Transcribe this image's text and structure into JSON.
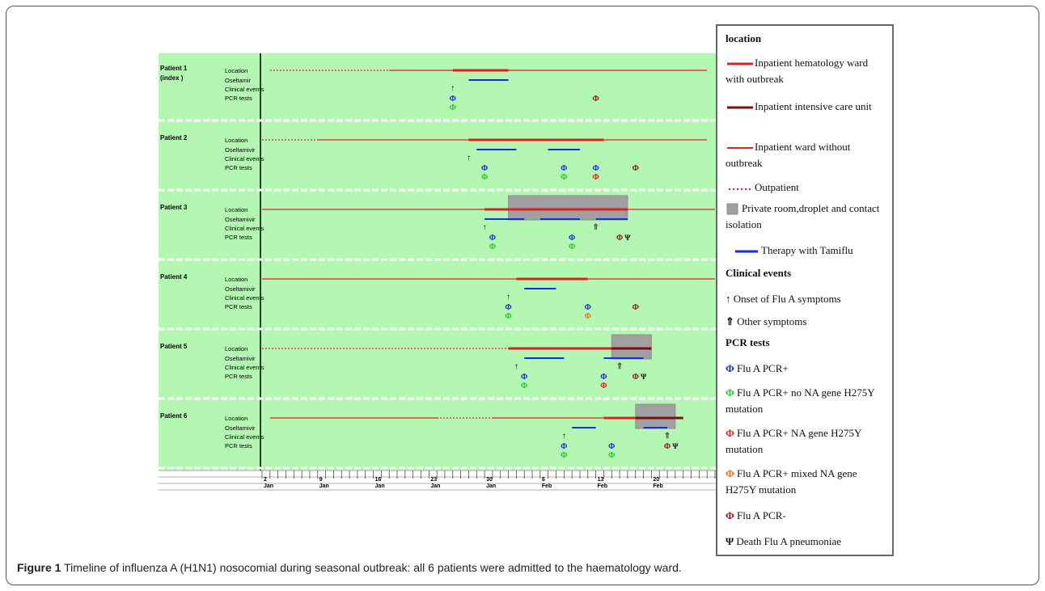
{
  "caption": {
    "label": "Figure 1",
    "text": "Timeline of influenza A (H1N1) nosocomial during seasonal outbreak: all 6 patients were admitted to the haematology ward."
  },
  "legend": {
    "title": "location",
    "items": {
      "hem_ward": "Inpatient hematology ward with outbreak",
      "icu": "Inpatient intensive care unit",
      "ward_no_outbreak": "Inpatient ward without outbreak",
      "outpatient": "Outpatient",
      "isolation": "Private room,droplet and contact  isolation",
      "tamiflu": "Therapy with Tamiflu"
    },
    "clinical_title": "Clinical events",
    "clinical": {
      "onset": "Onset of Flu A symptoms",
      "other": "Other symptoms"
    },
    "pcr_title": "PCR tests",
    "pcr": {
      "pos": "Flu A PCR+",
      "pos_no_mut": "Flu A PCR+ no NA gene H275Y mutation",
      "pos_mut": "Flu A PCR+ NA gene H275Y mutation",
      "pos_mixed": "Flu A PCR+ mixed NA gene H275Y mutation",
      "neg": "Flu A PCR-",
      "death": "Death Flu A pneumoniae"
    }
  },
  "colors": {
    "background": "#b3f7b3",
    "hem_ward": "#e02020",
    "icu": "#7a1010",
    "ward": "#e02020",
    "tamiflu": "#1030e0",
    "isolation": "#a0a0a0",
    "pcr_pos": "#1030e0",
    "pcr_no_mut": "#28c828",
    "pcr_mut": "#e82020",
    "pcr_mixed": "#ff6a10",
    "pcr_neg": "#8a1a1a"
  },
  "chart_data": {
    "type": "timeline",
    "row_labels": [
      "Location",
      "Oseltamivir",
      "Clinical events",
      "PCR tests"
    ],
    "row_labels_p1": [
      "Location",
      "Oseltamir",
      "Clinical events",
      "PCR tests"
    ],
    "x_axis": {
      "days_start": 1,
      "days_end": 58,
      "ticks": [
        {
          "day": 1,
          "label": [
            "2",
            "Jan"
          ]
        },
        {
          "day": 8,
          "label": [
            "9",
            "Jan"
          ]
        },
        {
          "day": 15,
          "label": [
            "16",
            "Jan"
          ]
        },
        {
          "day": 22,
          "label": [
            "23",
            "Jan"
          ]
        },
        {
          "day": 29,
          "label": [
            "30",
            "Jan"
          ]
        },
        {
          "day": 36,
          "label": [
            "6",
            "Feb"
          ]
        },
        {
          "day": 43,
          "label": [
            "13",
            "Feb"
          ]
        },
        {
          "day": 50,
          "label": [
            "20",
            "Feb"
          ]
        }
      ]
    },
    "patients": [
      {
        "name": "Patient 1",
        "subname": "(index )",
        "outpatient": [
          [
            2,
            17
          ]
        ],
        "ward": [
          [
            17,
            25
          ],
          [
            32,
            57
          ]
        ],
        "hem": [
          [
            25,
            32
          ]
        ],
        "icu": [],
        "isolation": [],
        "tamiflu": [
          [
            27,
            32
          ]
        ],
        "onset": [
          25
        ],
        "other": [],
        "pcr": [
          [
            25,
            1,
            "pos"
          ],
          [
            25,
            2,
            "no_mut"
          ],
          [
            43,
            1,
            "neg"
          ]
        ],
        "death": []
      },
      {
        "name": "Patient 2",
        "subname": "",
        "outpatient": [
          [
            1,
            8
          ]
        ],
        "ward": [
          [
            8,
            27
          ],
          [
            44,
            57
          ]
        ],
        "hem": [
          [
            27,
            44
          ]
        ],
        "icu": [],
        "isolation": [],
        "tamiflu": [
          [
            28,
            33
          ],
          [
            37,
            41
          ]
        ],
        "onset": [
          27
        ],
        "other": [],
        "pcr": [
          [
            29,
            1,
            "pos"
          ],
          [
            29,
            2,
            "no_mut"
          ],
          [
            39,
            1,
            "pos"
          ],
          [
            39,
            2,
            "no_mut"
          ],
          [
            43,
            1,
            "pos"
          ],
          [
            43,
            2,
            "mut"
          ],
          [
            48,
            1,
            "neg"
          ]
        ],
        "death": []
      },
      {
        "name": "Patient 3",
        "subname": "",
        "outpatient": [],
        "ward": [
          [
            1,
            29
          ],
          [
            47,
            58
          ]
        ],
        "hem": [
          [
            29,
            47
          ]
        ],
        "icu": [],
        "isolation": [
          [
            32,
            47
          ]
        ],
        "tamiflu": [
          [
            29,
            34
          ],
          [
            36,
            41
          ],
          [
            43,
            47
          ]
        ],
        "onset": [
          29
        ],
        "other": [
          43
        ],
        "pcr": [
          [
            30,
            1,
            "pos"
          ],
          [
            30,
            2,
            "no_mut"
          ],
          [
            40,
            1,
            "pos"
          ],
          [
            40,
            2,
            "no_mut"
          ],
          [
            46,
            1,
            "neg"
          ]
        ],
        "death": [
          47
        ]
      },
      {
        "name": "Patient 4",
        "subname": "",
        "outpatient": [],
        "ward": [
          [
            1,
            33
          ],
          [
            42,
            58
          ]
        ],
        "hem": [
          [
            33,
            42
          ]
        ],
        "icu": [],
        "isolation": [],
        "tamiflu": [
          [
            34,
            38
          ]
        ],
        "onset": [
          32
        ],
        "other": [],
        "pcr": [
          [
            32,
            1,
            "pos"
          ],
          [
            32,
            2,
            "no_mut"
          ],
          [
            42,
            1,
            "pos"
          ],
          [
            42,
            2,
            "mixed"
          ],
          [
            48,
            1,
            "neg"
          ]
        ],
        "death": []
      },
      {
        "name": "Patient 5",
        "subname": "",
        "outpatient": [
          [
            1,
            32
          ]
        ],
        "ward": [],
        "hem": [
          [
            32,
            45
          ]
        ],
        "icu": [
          [
            45,
            50
          ]
        ],
        "isolation": [
          [
            45,
            50
          ]
        ],
        "tamiflu": [
          [
            34,
            39
          ],
          [
            44,
            49
          ]
        ],
        "onset": [
          33
        ],
        "other": [
          46
        ],
        "pcr": [
          [
            34,
            1,
            "pos"
          ],
          [
            34,
            2,
            "no_mut"
          ],
          [
            44,
            1,
            "pos"
          ],
          [
            44,
            2,
            "mut"
          ],
          [
            48,
            1,
            "neg"
          ]
        ],
        "death": [
          49
        ]
      },
      {
        "name": "Patient 6",
        "subname": "",
        "outpatient": [
          [
            23,
            30
          ]
        ],
        "ward": [
          [
            2,
            23
          ],
          [
            30,
            44
          ]
        ],
        "hem": [
          [
            44,
            48
          ]
        ],
        "icu": [
          [
            48,
            54
          ]
        ],
        "isolation": [
          [
            48,
            53
          ]
        ],
        "tamiflu": [
          [
            40,
            43
          ],
          [
            49,
            52
          ]
        ],
        "onset": [
          39
        ],
        "other": [
          52
        ],
        "pcr": [
          [
            39,
            1,
            "pos"
          ],
          [
            39,
            2,
            "no_mut"
          ],
          [
            45,
            1,
            "pos"
          ],
          [
            45,
            2,
            "no_mut"
          ],
          [
            52,
            1,
            "neg"
          ]
        ],
        "death": [
          53
        ]
      }
    ]
  }
}
